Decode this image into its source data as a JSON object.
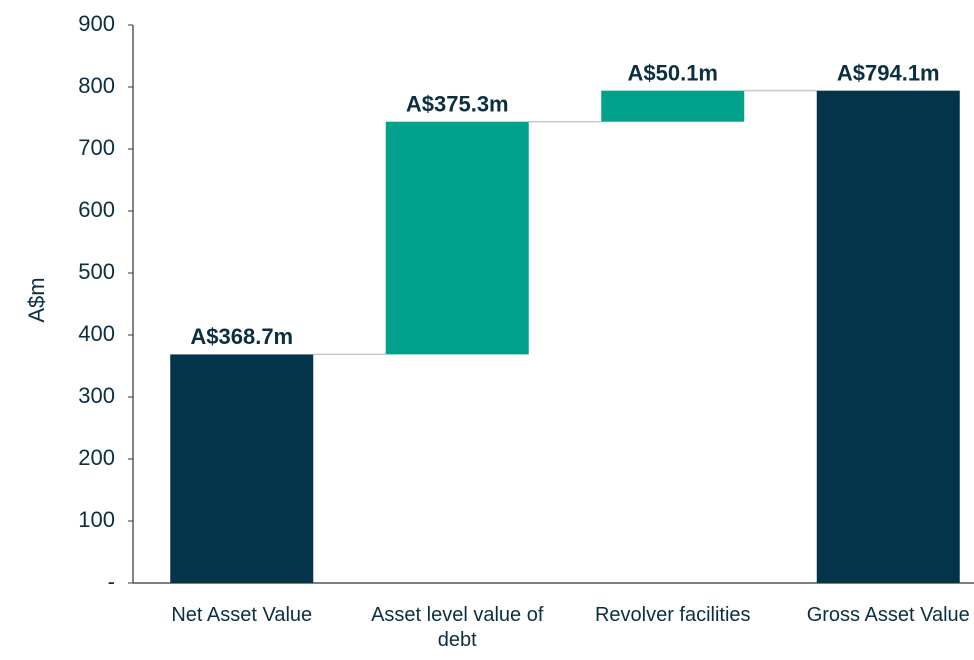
{
  "chart_data": {
    "type": "waterfall",
    "y_label": "A$m",
    "categories": [
      "Net Asset Value",
      "Asset level value of debt",
      "Revolver facilities",
      "Gross Asset Value"
    ],
    "values": [
      368.7,
      375.3,
      50.1,
      794.1
    ],
    "value_labels": [
      "A$368.7m",
      "A$375.3m",
      "A$50.1m",
      "A$794.1m"
    ],
    "measure": [
      "absolute",
      "relative",
      "relative",
      "total"
    ],
    "colors": [
      "#04344a",
      "#00a08a",
      "#00a08a",
      "#04344a"
    ],
    "connector_color": "#c8c8c8",
    "ylim": [
      0,
      900
    ],
    "yticks": [
      {
        "value": 0,
        "label": "-"
      },
      100,
      200,
      300,
      400,
      500,
      600,
      700,
      800,
      900
    ],
    "grid": false
  }
}
